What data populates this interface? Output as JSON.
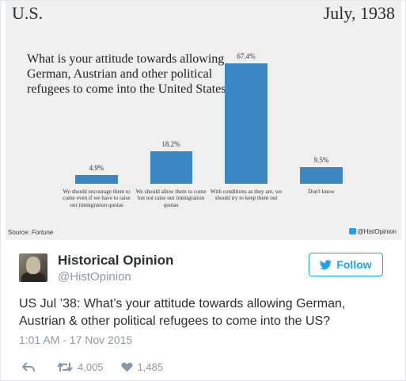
{
  "infographic": {
    "region": "U.S.",
    "date": "July, 1938",
    "question": "What is your attitude towards allowing German, Austrian and other political refugees to come into the United States?",
    "source_label": "Source:",
    "source_name": "Fortune",
    "handle": "@HistOpinion",
    "bar_color": "#3a87c4"
  },
  "chart_data": {
    "type": "bar",
    "title": "What is your attitude towards allowing German, Austrian and other political refugees to come into the United States?",
    "categories": [
      "We should encourage them to come even if we have to raise our immigration quotas",
      "We should allow them to come but not raise our immigration quotas",
      "With conditions as they are, we should try to keep them out",
      "Don't know"
    ],
    "values": [
      4.9,
      18.2,
      67.4,
      9.5
    ],
    "value_labels": [
      "4.9%",
      "18.2%",
      "67.4%",
      "9.5%"
    ],
    "ylim": [
      0,
      70
    ],
    "grid": false
  },
  "tweet": {
    "display_name": "Historical Opinion",
    "username": "@HistOpinion",
    "follow_label": "Follow",
    "text": "US Jul ’38: What’s your attitude towards allowing German, Austrian & other political refugees to come into the US?",
    "timestamp": "1:01 AM - 17 Nov 2015",
    "retweets": "4,005",
    "likes": "1,485",
    "accent_color": "#1da1f2",
    "icons": [
      "reply-icon",
      "retweet-icon",
      "heart-icon",
      "twitter-bird-icon"
    ]
  }
}
